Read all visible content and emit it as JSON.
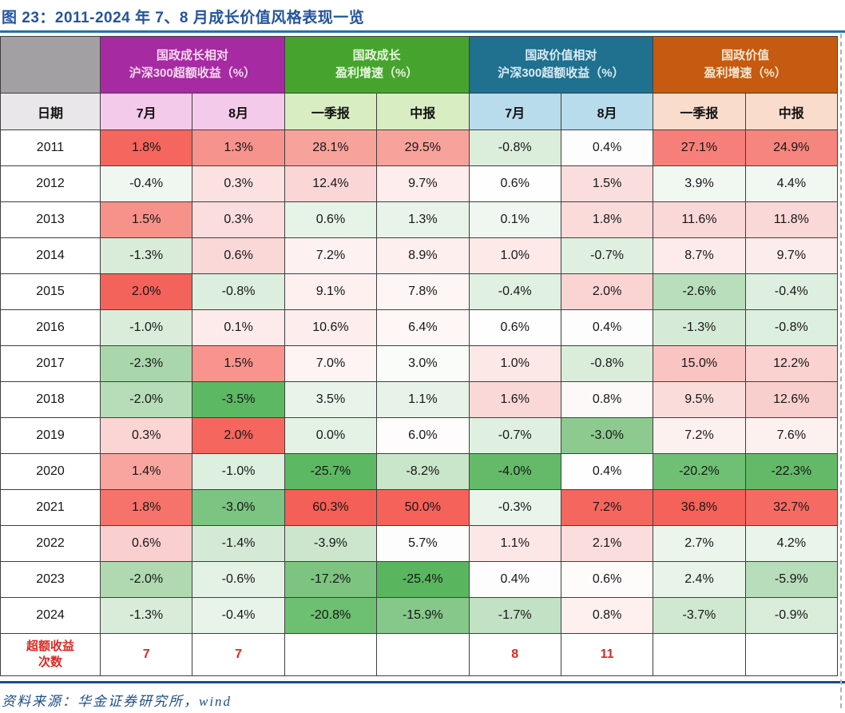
{
  "title": "图 23：2011-2024 年 7、8 月成长价值风格表现一览",
  "source_note": "资料来源：华金证券研究所，wind",
  "colors": {
    "title_color": "#24549E",
    "rule_top": "#2173A5",
    "rule_bottom": "#174F80",
    "border_color": "#3F3F3F",
    "corner_bg": "#A2A0A2",
    "date_bg": "#E9E7E9",
    "summary_red": "#E02620",
    "source_color": "#1F4E8A",
    "positive_heat": "#F4625A",
    "negative_heat": "#5DB863"
  },
  "chart_data": {
    "type": "table",
    "date_header": "日期",
    "groups": [
      {
        "line1": "国政成长相对",
        "line2": "沪深300超额收益（%）",
        "bg": "#A62AA2",
        "fg": "#F7D9F0",
        "sub_bg": "#F4CAEA",
        "cols": [
          "7月",
          "8月"
        ]
      },
      {
        "line1": "国政成长",
        "line2": "盈利增速（%）",
        "bg": "#46A42E",
        "fg": "#E9F5DF",
        "sub_bg": "#D9EDC3",
        "cols": [
          "一季报",
          "中报"
        ]
      },
      {
        "line1": "国政价值相对",
        "line2": "沪深300超额收益（%）",
        "bg": "#20708F",
        "fg": "#D9ECF5",
        "sub_bg": "#B8DCEC",
        "cols": [
          "7月",
          "8月"
        ]
      },
      {
        "line1": "国政价值",
        "line2": "盈利增速（%）",
        "bg": "#C65A11",
        "fg": "#F6E8D2",
        "sub_bg": "#FADCCC",
        "cols": [
          "一季报",
          "中报"
        ]
      }
    ],
    "rows": [
      {
        "year": "2011",
        "cells": [
          {
            "v": "1.8%",
            "bg": "#F4665E"
          },
          {
            "v": "1.3%",
            "bg": "#F7938D"
          },
          {
            "v": "28.1%",
            "bg": "#F8A29C"
          },
          {
            "v": "29.5%",
            "bg": "#F8A29C"
          },
          {
            "v": "-0.8%",
            "bg": "#DBEEDC"
          },
          {
            "v": "0.4%",
            "bg": "#FDFDFD"
          },
          {
            "v": "27.1%",
            "bg": "#F68079"
          },
          {
            "v": "24.9%",
            "bg": "#F6857E"
          }
        ]
      },
      {
        "year": "2012",
        "cells": [
          {
            "v": "-0.4%",
            "bg": "#EFF7F0"
          },
          {
            "v": "0.3%",
            "bg": "#FBE2E1"
          },
          {
            "v": "12.4%",
            "bg": "#FAD7D6"
          },
          {
            "v": "9.7%",
            "bg": "#FDEDEC"
          },
          {
            "v": "0.6%",
            "bg": "#FEFEFE"
          },
          {
            "v": "1.5%",
            "bg": "#FADEDD"
          },
          {
            "v": "3.9%",
            "bg": "#F1F8F2"
          },
          {
            "v": "4.4%",
            "bg": "#F1F8F2"
          }
        ]
      },
      {
        "year": "2013",
        "cells": [
          {
            "v": "1.5%",
            "bg": "#F7928B"
          },
          {
            "v": "0.3%",
            "bg": "#FADDDC"
          },
          {
            "v": "0.6%",
            "bg": "#E6F3E7"
          },
          {
            "v": "1.3%",
            "bg": "#E8F4E9"
          },
          {
            "v": "0.1%",
            "bg": "#EFF7F0"
          },
          {
            "v": "1.8%",
            "bg": "#FADBDA"
          },
          {
            "v": "11.6%",
            "bg": "#FAD8D7"
          },
          {
            "v": "11.8%",
            "bg": "#FAD8D7"
          }
        ]
      },
      {
        "year": "2014",
        "cells": [
          {
            "v": "-1.3%",
            "bg": "#D8ECD9"
          },
          {
            "v": "0.6%",
            "bg": "#F9D8D7"
          },
          {
            "v": "7.2%",
            "bg": "#FDF2F1"
          },
          {
            "v": "8.9%",
            "bg": "#FDEFEE"
          },
          {
            "v": "1.0%",
            "bg": "#FCE9E8"
          },
          {
            "v": "-0.7%",
            "bg": "#DFF0E0"
          },
          {
            "v": "8.7%",
            "bg": "#FCEBEA"
          },
          {
            "v": "9.7%",
            "bg": "#FCECEB"
          }
        ]
      },
      {
        "year": "2015",
        "cells": [
          {
            "v": "2.0%",
            "bg": "#F4635B"
          },
          {
            "v": "-0.8%",
            "bg": "#DCEEDD"
          },
          {
            "v": "9.1%",
            "bg": "#FDF0EF"
          },
          {
            "v": "7.8%",
            "bg": "#FEF6F5"
          },
          {
            "v": "-0.4%",
            "bg": "#E0F0E1"
          },
          {
            "v": "2.0%",
            "bg": "#F9D4D3"
          },
          {
            "v": "-2.6%",
            "bg": "#B9DEBB"
          },
          {
            "v": "-0.4%",
            "bg": "#DEEFDF"
          }
        ]
      },
      {
        "year": "2016",
        "cells": [
          {
            "v": "-1.0%",
            "bg": "#DAEDDB"
          },
          {
            "v": "0.1%",
            "bg": "#FCEBEA"
          },
          {
            "v": "10.6%",
            "bg": "#FDEEED"
          },
          {
            "v": "6.4%",
            "bg": "#FEF7F6"
          },
          {
            "v": "0.6%",
            "bg": "#FEFEFE"
          },
          {
            "v": "0.4%",
            "bg": "#FEFDFD"
          },
          {
            "v": "-1.3%",
            "bg": "#D6EBD7"
          },
          {
            "v": "-0.8%",
            "bg": "#DDEFDE"
          }
        ]
      },
      {
        "year": "2017",
        "cells": [
          {
            "v": "-2.3%",
            "bg": "#A9D6AB"
          },
          {
            "v": "1.5%",
            "bg": "#F9938D"
          },
          {
            "v": "7.0%",
            "bg": "#FDF4F3"
          },
          {
            "v": "3.0%",
            "bg": "#F9FCF9"
          },
          {
            "v": "1.0%",
            "bg": "#FCE8E7"
          },
          {
            "v": "-0.8%",
            "bg": "#DAEDDB"
          },
          {
            "v": "15.0%",
            "bg": "#F9C4C2"
          },
          {
            "v": "12.2%",
            "bg": "#FAD3D1"
          }
        ]
      },
      {
        "year": "2018",
        "cells": [
          {
            "v": "-2.0%",
            "bg": "#B6DCB8"
          },
          {
            "v": "-3.5%",
            "bg": "#5DB863"
          },
          {
            "v": "3.5%",
            "bg": "#E8F4E9"
          },
          {
            "v": "1.1%",
            "bg": "#E7F3E8"
          },
          {
            "v": "1.6%",
            "bg": "#FAD8D7"
          },
          {
            "v": "0.8%",
            "bg": "#FEF9F9"
          },
          {
            "v": "9.5%",
            "bg": "#FADCDB"
          },
          {
            "v": "12.6%",
            "bg": "#F9CFCE"
          }
        ]
      },
      {
        "year": "2019",
        "cells": [
          {
            "v": "0.3%",
            "bg": "#FAD5D4"
          },
          {
            "v": "2.0%",
            "bg": "#F4665E"
          },
          {
            "v": "0.0%",
            "bg": "#E4F2E5"
          },
          {
            "v": "6.0%",
            "bg": "#FEFCFC"
          },
          {
            "v": "-0.7%",
            "bg": "#DFF0E0"
          },
          {
            "v": "-3.0%",
            "bg": "#8CCA90"
          },
          {
            "v": "7.2%",
            "bg": "#FDF1F0"
          },
          {
            "v": "7.6%",
            "bg": "#FDF1F0"
          }
        ]
      },
      {
        "year": "2020",
        "cells": [
          {
            "v": "1.4%",
            "bg": "#F8A59F"
          },
          {
            "v": "-1.0%",
            "bg": "#DDEFDE"
          },
          {
            "v": "-25.7%",
            "bg": "#5DB863"
          },
          {
            "v": "-8.2%",
            "bg": "#C9E5CA"
          },
          {
            "v": "-4.0%",
            "bg": "#64BA69"
          },
          {
            "v": "0.4%",
            "bg": "#FEFEFE"
          },
          {
            "v": "-20.2%",
            "bg": "#6FC074"
          },
          {
            "v": "-22.3%",
            "bg": "#63B968"
          }
        ]
      },
      {
        "year": "2021",
        "cells": [
          {
            "v": "1.8%",
            "bg": "#F6736B"
          },
          {
            "v": "-3.0%",
            "bg": "#7CC481"
          },
          {
            "v": "60.3%",
            "bg": "#F45F57"
          },
          {
            "v": "50.0%",
            "bg": "#F4625A"
          },
          {
            "v": "-0.3%",
            "bg": "#E9F4EA"
          },
          {
            "v": "7.2%",
            "bg": "#F4665E"
          },
          {
            "v": "36.8%",
            "bg": "#F4625A"
          },
          {
            "v": "32.7%",
            "bg": "#F56B63"
          }
        ]
      },
      {
        "year": "2022",
        "cells": [
          {
            "v": "0.6%",
            "bg": "#F9D0CF"
          },
          {
            "v": "-1.4%",
            "bg": "#D5EAD6"
          },
          {
            "v": "-3.9%",
            "bg": "#CCE6CD"
          },
          {
            "v": "5.7%",
            "bg": "#FDFDFD"
          },
          {
            "v": "1.1%",
            "bg": "#FCE7E6"
          },
          {
            "v": "2.1%",
            "bg": "#FADDDC"
          },
          {
            "v": "2.7%",
            "bg": "#EBF5EC"
          },
          {
            "v": "4.2%",
            "bg": "#E9F4EA"
          }
        ]
      },
      {
        "year": "2023",
        "cells": [
          {
            "v": "-2.0%",
            "bg": "#B0D9B2"
          },
          {
            "v": "-0.6%",
            "bg": "#E4F2E5"
          },
          {
            "v": "-17.2%",
            "bg": "#7DC481"
          },
          {
            "v": "-25.4%",
            "bg": "#59B65F"
          },
          {
            "v": "0.4%",
            "bg": "#FDFDFD"
          },
          {
            "v": "0.6%",
            "bg": "#FEFBFB"
          },
          {
            "v": "2.4%",
            "bg": "#E8F4E9"
          },
          {
            "v": "-5.9%",
            "bg": "#B8DDBA"
          }
        ]
      },
      {
        "year": "2024",
        "cells": [
          {
            "v": "-1.3%",
            "bg": "#D8ECD9"
          },
          {
            "v": "-0.4%",
            "bg": "#E8F4E9"
          },
          {
            "v": "-20.8%",
            "bg": "#6DBF72"
          },
          {
            "v": "-15.9%",
            "bg": "#86C88A"
          },
          {
            "v": "-1.7%",
            "bg": "#C3E1C4"
          },
          {
            "v": "0.8%",
            "bg": "#FDF0EF"
          },
          {
            "v": "-3.7%",
            "bg": "#D0E8D1"
          },
          {
            "v": "-0.9%",
            "bg": "#DAEDDB"
          }
        ]
      }
    ],
    "summary": {
      "line1": "超额收益",
      "line2": "次数",
      "values": [
        "7",
        "7",
        "",
        "",
        "8",
        "11",
        "",
        ""
      ]
    }
  }
}
